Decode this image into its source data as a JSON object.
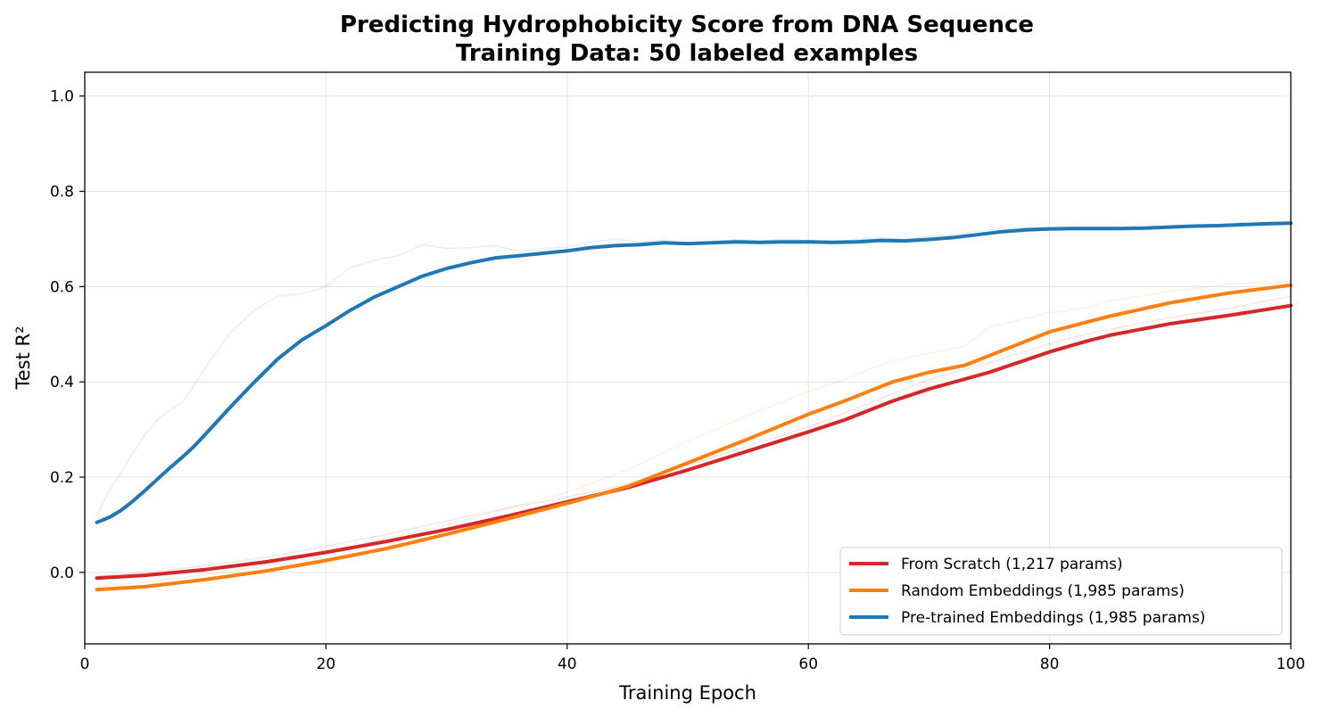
{
  "chart_data": {
    "type": "line",
    "title": "Predicting Hydrophobicity Score from DNA Sequence",
    "subtitle": "Training Data: 50 labeled examples",
    "xlabel": "Training Epoch",
    "ylabel": "Test R²",
    "xlim": [
      0,
      100
    ],
    "ylim": [
      -0.15,
      1.05
    ],
    "xticks": [
      0,
      20,
      40,
      60,
      80,
      100
    ],
    "yticks": [
      0.0,
      0.2,
      0.4,
      0.6,
      0.8,
      1.0
    ],
    "xtick_labels": [
      "0",
      "20",
      "40",
      "60",
      "80",
      "100"
    ],
    "ytick_labels": [
      "0.0",
      "0.2",
      "0.4",
      "0.6",
      "0.8",
      "1.0"
    ],
    "grid": true,
    "legend_position": "lower-right",
    "series": [
      {
        "name": "From Scratch (1,217 params)",
        "color": "#d62728",
        "x": [
          1,
          5,
          10,
          15,
          20,
          25,
          30,
          35,
          40,
          45,
          50,
          55,
          60,
          63,
          67,
          70,
          75,
          80,
          83,
          85,
          90,
          95,
          100
        ],
        "smoothed": [
          -0.012,
          -0.006,
          0.006,
          0.022,
          0.042,
          0.065,
          0.09,
          0.118,
          0.148,
          0.178,
          0.215,
          0.255,
          0.295,
          0.32,
          0.36,
          0.385,
          0.42,
          0.463,
          0.485,
          0.498,
          0.522,
          0.54,
          0.56
        ],
        "raw": [
          -0.008,
          0.0,
          0.014,
          0.032,
          0.055,
          0.08,
          0.108,
          0.135,
          0.158,
          0.185,
          0.225,
          0.265,
          0.305,
          0.335,
          0.375,
          0.405,
          0.44,
          0.48,
          0.5,
          0.51,
          0.535,
          0.555,
          0.58
        ]
      },
      {
        "name": "Random Embeddings (1,985 params)",
        "color": "#ff7f0e",
        "x": [
          1,
          5,
          10,
          15,
          20,
          25,
          30,
          35,
          40,
          45,
          50,
          55,
          60,
          63,
          67,
          70,
          73,
          75,
          80,
          83,
          85,
          90,
          95,
          100
        ],
        "smoothed": [
          -0.036,
          -0.03,
          -0.015,
          0.003,
          0.025,
          0.05,
          0.08,
          0.112,
          0.145,
          0.18,
          0.23,
          0.28,
          0.332,
          0.36,
          0.4,
          0.42,
          0.435,
          0.455,
          0.505,
          0.525,
          0.538,
          0.566,
          0.587,
          0.603
        ],
        "raw": [
          -0.03,
          -0.02,
          -0.005,
          0.015,
          0.04,
          0.07,
          0.1,
          0.135,
          0.168,
          0.215,
          0.275,
          0.33,
          0.38,
          0.405,
          0.445,
          0.46,
          0.475,
          0.515,
          0.545,
          0.555,
          0.57,
          0.59,
          0.605,
          0.61
        ]
      },
      {
        "name": "Pre-trained Embeddings (1,985 params)",
        "color": "#1f77b4",
        "x": [
          1,
          2,
          3,
          4,
          5,
          6,
          7,
          8,
          9,
          10,
          12,
          14,
          16,
          18,
          20,
          22,
          24,
          26,
          28,
          30,
          32,
          34,
          36,
          38,
          40,
          42,
          44,
          46,
          48,
          50,
          52,
          54,
          56,
          58,
          60,
          62,
          64,
          66,
          68,
          70,
          72,
          74,
          76,
          78,
          80,
          82,
          84,
          86,
          88,
          90,
          92,
          94,
          96,
          98,
          100
        ],
        "smoothed": [
          0.105,
          0.115,
          0.13,
          0.15,
          0.172,
          0.195,
          0.218,
          0.24,
          0.263,
          0.29,
          0.345,
          0.398,
          0.448,
          0.488,
          0.518,
          0.55,
          0.578,
          0.6,
          0.622,
          0.638,
          0.65,
          0.66,
          0.665,
          0.67,
          0.675,
          0.682,
          0.686,
          0.688,
          0.692,
          0.69,
          0.692,
          0.694,
          0.693,
          0.694,
          0.694,
          0.693,
          0.694,
          0.697,
          0.696,
          0.699,
          0.703,
          0.709,
          0.715,
          0.719,
          0.721,
          0.722,
          0.722,
          0.722,
          0.723,
          0.725,
          0.727,
          0.728,
          0.73,
          0.732,
          0.733
        ],
        "raw": [
          0.12,
          0.17,
          0.21,
          0.25,
          0.29,
          0.32,
          0.34,
          0.355,
          0.39,
          0.43,
          0.5,
          0.55,
          0.58,
          0.585,
          0.6,
          0.64,
          0.655,
          0.665,
          0.688,
          0.68,
          0.682,
          0.686,
          0.674,
          0.68,
          0.683,
          0.694,
          0.7,
          0.693,
          0.698,
          0.692,
          0.694,
          0.699,
          0.695,
          0.7,
          0.697,
          0.694,
          0.699,
          0.703,
          0.698,
          0.706,
          0.71,
          0.716,
          0.722,
          0.724,
          0.725,
          0.724,
          0.723,
          0.724,
          0.725,
          0.728,
          0.729,
          0.73,
          0.731,
          0.733,
          0.734
        ]
      }
    ]
  }
}
